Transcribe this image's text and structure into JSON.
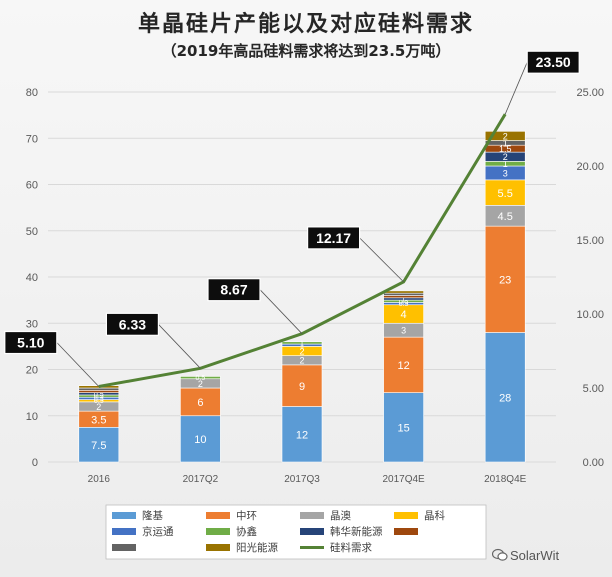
{
  "title": "单晶硅片产能以及对应硅料需求",
  "subtitle": "（2019年高品硅料需求将达到23.5万吨）",
  "watermark": "SolarWit",
  "chart_data": {
    "type": "bar",
    "stacked": true,
    "categories": [
      "2016",
      "2017Q2",
      "2017Q3",
      "2017Q4E",
      "2018Q4E"
    ],
    "left_axis": {
      "ylim": [
        0,
        80
      ],
      "ticks": [
        "0",
        "10",
        "20",
        "30",
        "40",
        "50",
        "60",
        "70",
        "80"
      ]
    },
    "right_axis": {
      "ylim": [
        0,
        25
      ],
      "ticks": [
        "0.00",
        "5.00",
        "10.00",
        "15.00",
        "20.00",
        "25.00"
      ]
    },
    "grid": true,
    "legend_position": "bottom",
    "series": [
      {
        "name": "隆基",
        "color": "#5b9bd5",
        "values": [
          7.5,
          10,
          12,
          15,
          28
        ],
        "labels": [
          "7.5",
          "10",
          "12",
          "15",
          "28"
        ]
      },
      {
        "name": "中环",
        "color": "#ed7d31",
        "values": [
          3.5,
          6,
          9,
          12,
          23
        ],
        "labels": [
          "3.5",
          "6",
          "9",
          "12",
          "23"
        ]
      },
      {
        "name": "晶澳",
        "color": "#a5a5a5",
        "values": [
          2,
          2,
          2,
          3,
          4.5
        ],
        "labels": [
          "2",
          "2",
          "2",
          "3",
          "4.5"
        ]
      },
      {
        "name": "晶科",
        "color": "#ffc000",
        "values": [
          0.5,
          0,
          2,
          4,
          5.5
        ],
        "labels": [
          "",
          "",
          "2",
          "4",
          "5.5"
        ]
      },
      {
        "name": "京运通",
        "color": "#4472c4",
        "values": [
          0.5,
          0,
          0.5,
          0.5,
          3
        ],
        "labels": [
          "",
          "",
          "",
          "",
          "3"
        ]
      },
      {
        "name": "协鑫",
        "color": "#70ad47",
        "values": [
          0.5,
          0.5,
          0.5,
          0.5,
          1
        ],
        "labels": [
          "",
          "",
          "",
          "",
          "1"
        ]
      },
      {
        "name": "韩华新能源",
        "color": "#264478",
        "values": [
          0.5,
          0,
          0,
          0.5,
          2
        ],
        "labels": [
          "",
          "",
          "",
          "",
          "2"
        ]
      },
      {
        "name": "",
        "color": "#9e480e",
        "values": [
          0.5,
          0,
          0,
          0.5,
          1.5
        ],
        "labels": [
          "",
          "",
          "",
          "",
          "1.5"
        ]
      },
      {
        "name": "",
        "color": "#636363",
        "values": [
          0.5,
          0,
          0,
          0.5,
          1
        ],
        "labels": [
          "",
          "",
          "",
          "",
          "1"
        ]
      },
      {
        "name": "阳光能源",
        "color": "#997300",
        "values": [
          0.5,
          0,
          0,
          0.5,
          2
        ],
        "labels": [
          "",
          "",
          "",
          "",
          "2"
        ]
      }
    ],
    "small_labels": [
      [
        "0.5",
        "0.5",
        "0.5",
        "0.5"
      ],
      [
        "0.5"
      ],
      [
        "1",
        "1",
        "1"
      ],
      [
        "0.5",
        "0.5",
        "1"
      ],
      []
    ],
    "line_series": {
      "name": "硅料需求",
      "color": "#548235",
      "axis": "right",
      "values": [
        5.1,
        6.33,
        8.67,
        12.17,
        23.5
      ],
      "labels": [
        "5.10",
        "6.33",
        "8.67",
        "12.17",
        "23.50"
      ]
    }
  }
}
